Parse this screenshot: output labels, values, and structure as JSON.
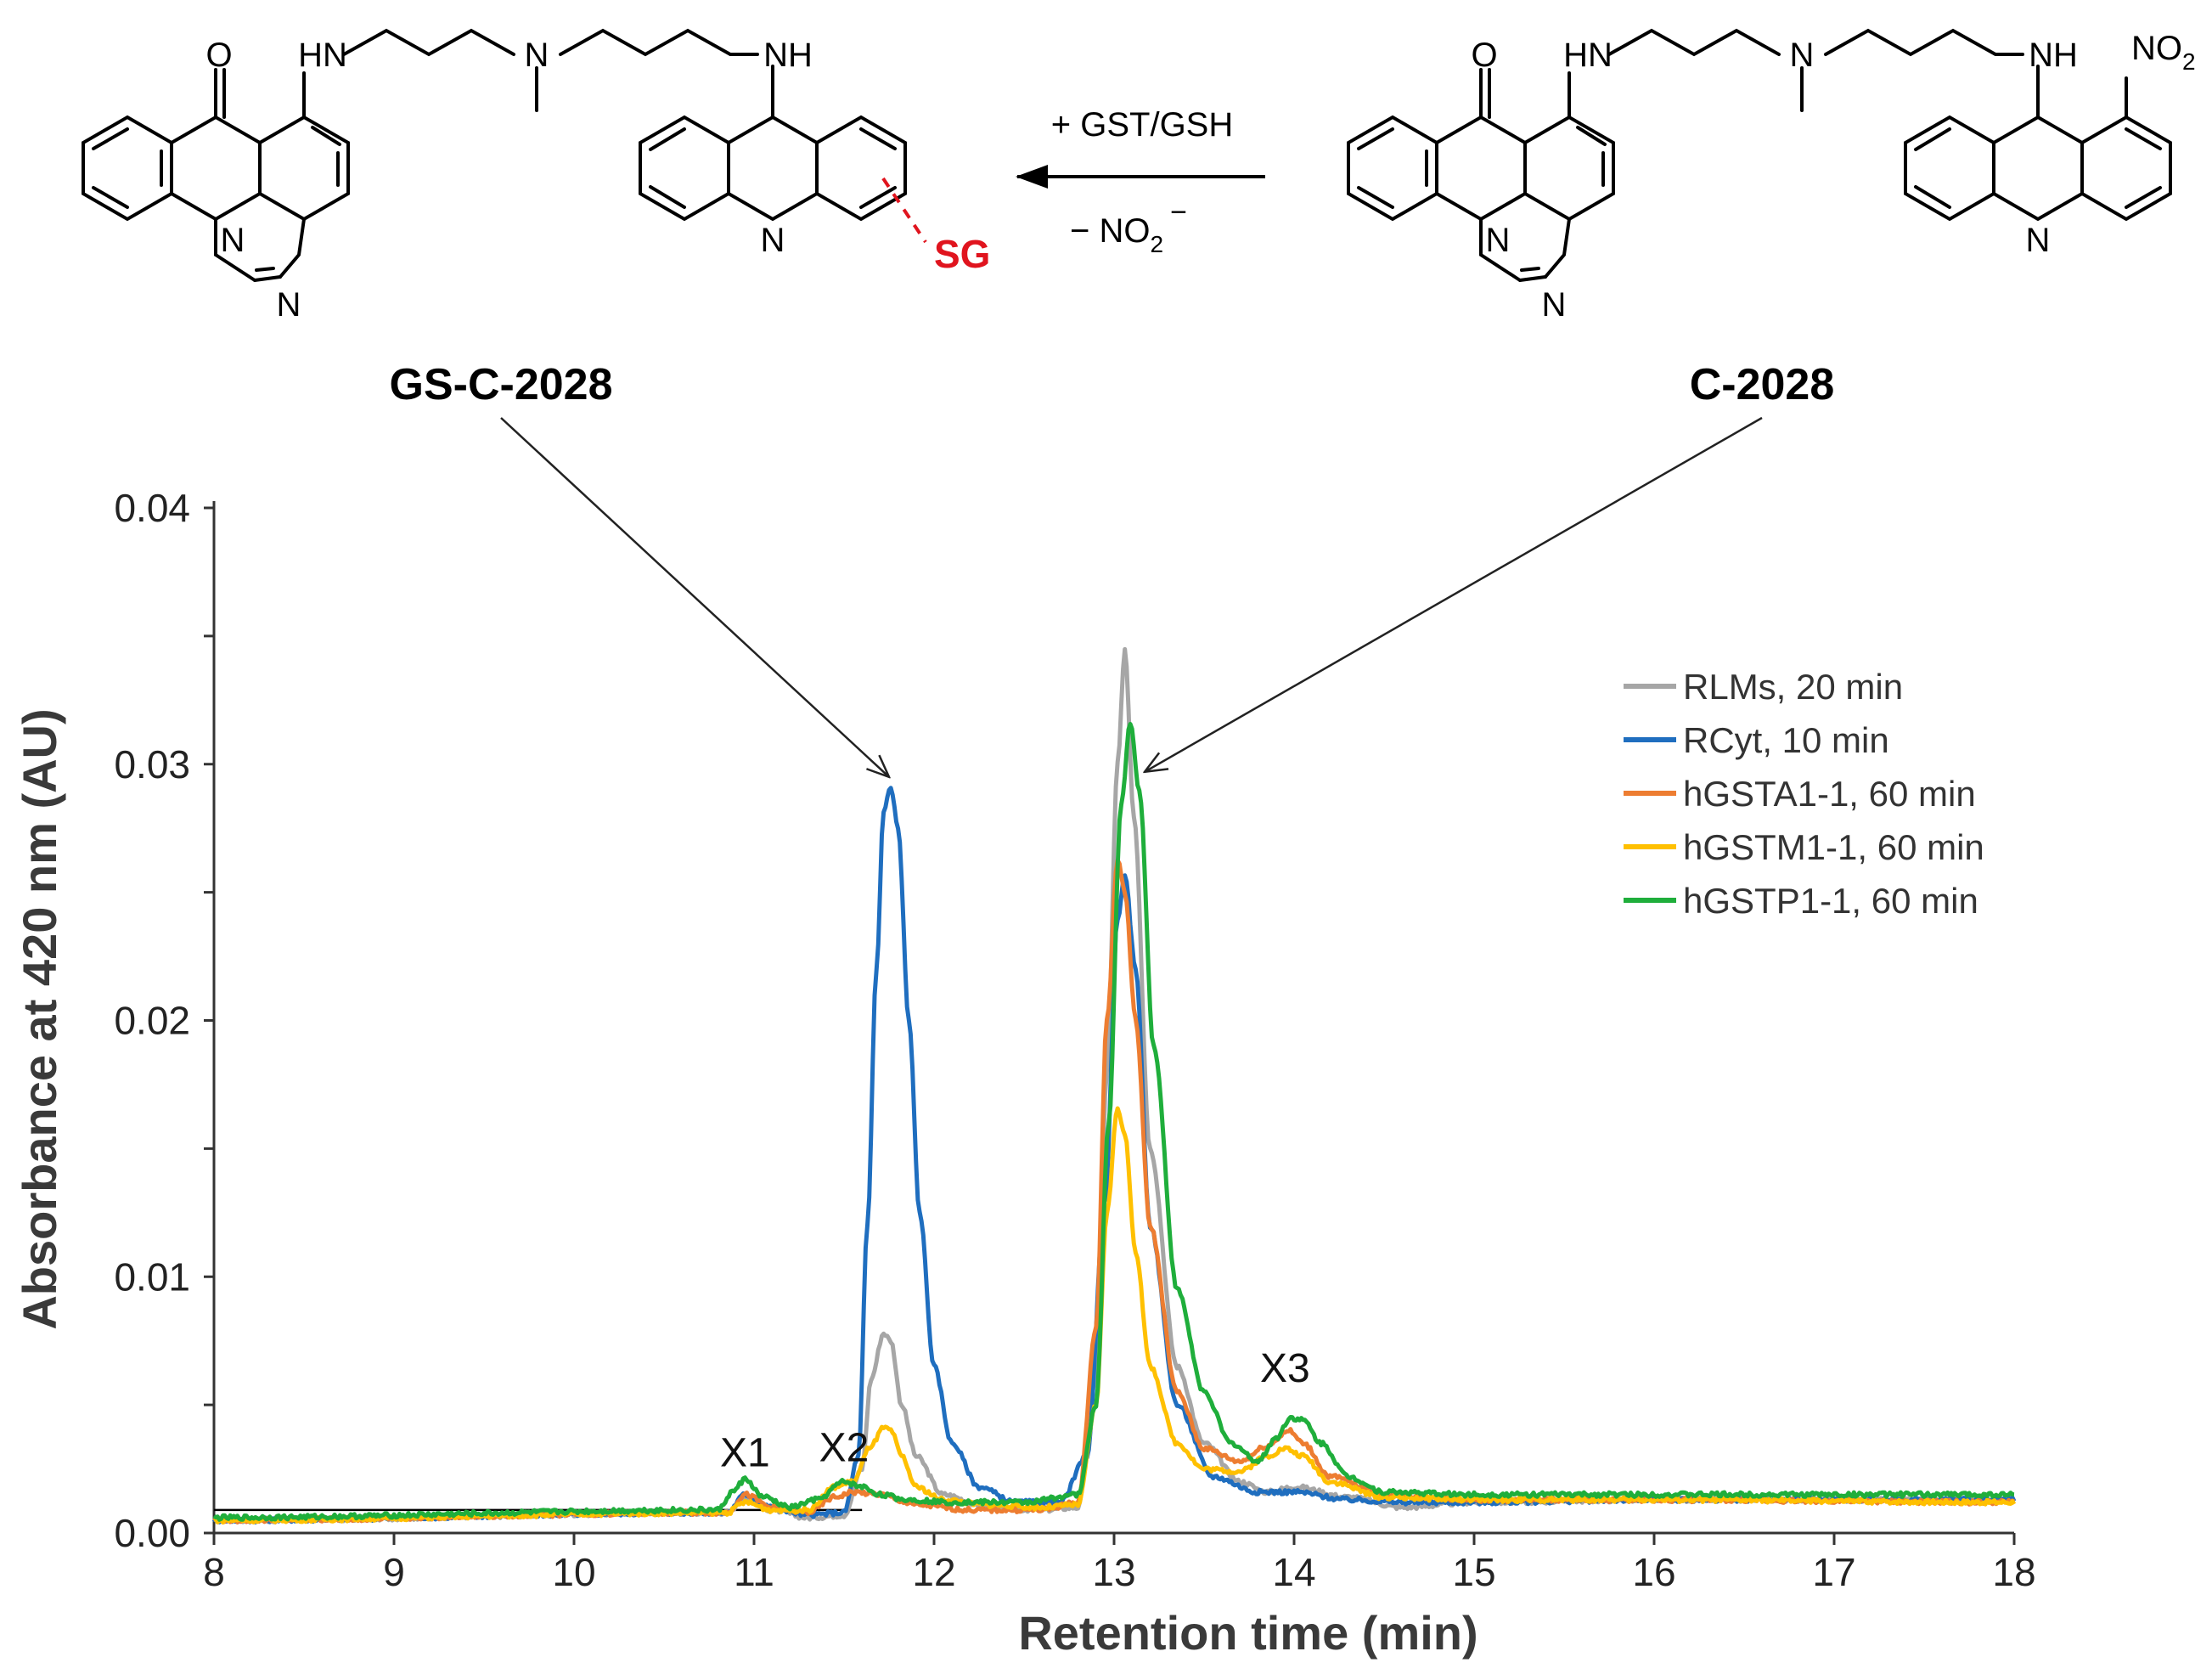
{
  "scheme": {
    "product_label": "GS-C-2028",
    "substrate_label": "C-2028",
    "reagent_top": "+ GST/GSH",
    "reagent_bottom": "− NO",
    "reagent_bottom_sub": "2",
    "reagent_bottom_sup": "−",
    "adduct_label": "SG",
    "atoms": {
      "O": "O",
      "HN": "HN",
      "NH": "NH",
      "N": "N",
      "NO": "NO",
      "NO_sub": "2"
    },
    "colors": {
      "adduct": "#e0141e",
      "bonds": "#000000"
    }
  },
  "chart_data": {
    "type": "line",
    "xlabel": "Retention time (min)",
    "ylabel": "Absorbance at 420 nm (AU)",
    "xlim": [
      8,
      18
    ],
    "ylim": [
      0,
      0.04
    ],
    "xticks": [
      "8",
      "9",
      "10",
      "11",
      "12",
      "13",
      "14",
      "15",
      "16",
      "17",
      "18"
    ],
    "yticks": [
      "0.00",
      "0.01",
      "0.02",
      "0.03",
      "0.04"
    ],
    "grid": false,
    "legend_position": "right",
    "baseline_reference": 0.0009,
    "peak_labels": [
      {
        "text": "X1",
        "x": 10.95,
        "y": 0.0026
      },
      {
        "text": "X2",
        "x": 11.5,
        "y": 0.0028
      },
      {
        "text": "X3",
        "x": 13.95,
        "y": 0.0059
      }
    ],
    "annotation_arrows": [
      {
        "from": "GS-C-2028",
        "to_x": 11.75,
        "to_y": 0.0295
      },
      {
        "from": "C-2028",
        "to_x": 13.17,
        "to_y": 0.0297
      }
    ],
    "series": [
      {
        "name": "RLMs, 20 min",
        "color": "#a6a6a6",
        "base": 0.0012,
        "x": [
          8,
          10.85,
          10.95,
          11.1,
          11.3,
          11.5,
          11.6,
          11.65,
          11.72,
          11.76,
          11.82,
          11.9,
          12.05,
          12.3,
          12.6,
          12.8,
          12.9,
          12.96,
          13.02,
          13.06,
          13.11,
          13.2,
          13.35,
          13.5,
          13.7,
          13.85,
          14,
          14.3,
          14.6,
          15,
          16,
          18
        ],
        "y": [
          0.0005,
          0.0008,
          0.0014,
          0.0009,
          0.0006,
          0.0007,
          0.0025,
          0.006,
          0.0078,
          0.0075,
          0.005,
          0.003,
          0.0015,
          0.001,
          0.0009,
          0.001,
          0.006,
          0.018,
          0.03,
          0.0345,
          0.028,
          0.015,
          0.0065,
          0.0035,
          0.002,
          0.0016,
          0.0018,
          0.0014,
          0.001,
          0.0012,
          0.0013,
          0.0013
        ]
      },
      {
        "name": "RCyt, 10 min",
        "color": "#1f6ebf",
        "base": 0.0012,
        "x": [
          8,
          10.85,
          10.95,
          11.1,
          11.3,
          11.5,
          11.58,
          11.63,
          11.68,
          11.72,
          11.76,
          11.8,
          11.86,
          11.92,
          12.0,
          12.1,
          12.25,
          12.45,
          12.7,
          12.85,
          12.95,
          13.02,
          13.06,
          13.12,
          13.2,
          13.35,
          13.55,
          13.8,
          14.0,
          14.3,
          14.6,
          15,
          16,
          18
        ],
        "y": [
          0.0005,
          0.0008,
          0.0015,
          0.001,
          0.0007,
          0.0008,
          0.003,
          0.012,
          0.022,
          0.0282,
          0.0291,
          0.0275,
          0.02,
          0.0125,
          0.0065,
          0.0035,
          0.0018,
          0.0012,
          0.0012,
          0.003,
          0.013,
          0.024,
          0.0256,
          0.022,
          0.012,
          0.005,
          0.0022,
          0.0016,
          0.0016,
          0.0013,
          0.0012,
          0.0012,
          0.0013,
          0.0013
        ]
      },
      {
        "name": "hGSTA1-1, 60 min",
        "color": "#ed7d31",
        "base": 0.0012,
        "x": [
          8,
          10.85,
          10.95,
          11.1,
          11.3,
          11.45,
          11.55,
          11.7,
          11.9,
          12.2,
          12.6,
          12.8,
          12.9,
          12.96,
          13.02,
          13.06,
          13.12,
          13.2,
          13.35,
          13.5,
          13.7,
          13.85,
          13.97,
          14.05,
          14.2,
          14.5,
          15,
          16,
          18
        ],
        "y": [
          0.0005,
          0.0008,
          0.0015,
          0.001,
          0.0008,
          0.0014,
          0.0016,
          0.0015,
          0.0011,
          0.0009,
          0.0009,
          0.0012,
          0.008,
          0.02,
          0.0263,
          0.025,
          0.02,
          0.012,
          0.0055,
          0.0033,
          0.0028,
          0.0034,
          0.004,
          0.0035,
          0.0022,
          0.0015,
          0.0013,
          0.0013,
          0.0012
        ]
      },
      {
        "name": "hGSTM1-1, 60 min",
        "color": "#ffc000",
        "base": 0.0012,
        "x": [
          8,
          10.85,
          10.95,
          11.1,
          11.3,
          11.45,
          11.55,
          11.65,
          11.72,
          11.76,
          11.82,
          11.9,
          12.05,
          12.3,
          12.6,
          12.8,
          12.9,
          12.96,
          13.02,
          13.06,
          13.12,
          13.2,
          13.35,
          13.5,
          13.7,
          13.85,
          13.95,
          14.05,
          14.2,
          14.5,
          15,
          16,
          18
        ],
        "y": [
          0.0005,
          0.0008,
          0.0012,
          0.0009,
          0.0009,
          0.0018,
          0.002,
          0.0034,
          0.0041,
          0.004,
          0.003,
          0.0018,
          0.0013,
          0.0011,
          0.001,
          0.0011,
          0.005,
          0.0125,
          0.0166,
          0.0155,
          0.011,
          0.0065,
          0.0035,
          0.0025,
          0.0024,
          0.003,
          0.0033,
          0.003,
          0.002,
          0.0014,
          0.0013,
          0.0013,
          0.0012
        ]
      },
      {
        "name": "hGSTP1-1, 60 min",
        "color": "#1fae3b",
        "base": 0.0014,
        "x": [
          8,
          10.8,
          10.88,
          10.95,
          11.05,
          11.2,
          11.35,
          11.5,
          11.6,
          11.7,
          11.85,
          12.1,
          12.5,
          12.8,
          12.9,
          12.97,
          13.04,
          13.09,
          13.14,
          13.22,
          13.35,
          13.5,
          13.65,
          13.8,
          13.9,
          13.98,
          14.05,
          14.15,
          14.3,
          14.5,
          15,
          16,
          18
        ],
        "y": [
          0.0006,
          0.0009,
          0.0016,
          0.0021,
          0.0014,
          0.001,
          0.0013,
          0.002,
          0.0018,
          0.0015,
          0.0013,
          0.0012,
          0.0012,
          0.0015,
          0.005,
          0.016,
          0.0285,
          0.0316,
          0.029,
          0.019,
          0.0095,
          0.0055,
          0.0035,
          0.0028,
          0.0037,
          0.0045,
          0.0044,
          0.0035,
          0.0022,
          0.0016,
          0.0015,
          0.0015,
          0.0015
        ]
      }
    ]
  }
}
